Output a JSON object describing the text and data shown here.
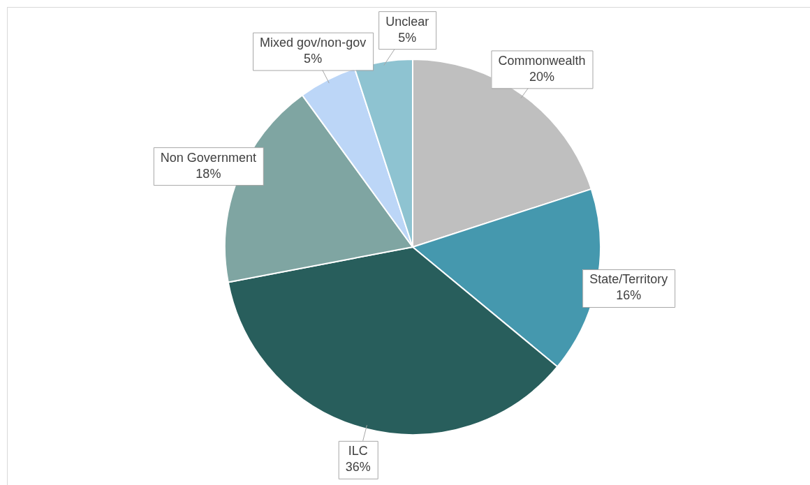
{
  "chart_data": {
    "type": "pie",
    "categories": [
      "Commonwealth",
      "State/Territory",
      "ILC",
      "Non Government",
      "Mixed gov/non-gov",
      "Unclear"
    ],
    "values": [
      20,
      16,
      36,
      18,
      5,
      5
    ],
    "colors": [
      "#bfbfbf",
      "#4598ae",
      "#285e5c",
      "#7fa5a2",
      "#bcd6f7",
      "#8ec3d1"
    ],
    "value_labels": [
      "20%",
      "16%",
      "36%",
      "18%",
      "5%",
      "5%"
    ],
    "legend": false
  }
}
